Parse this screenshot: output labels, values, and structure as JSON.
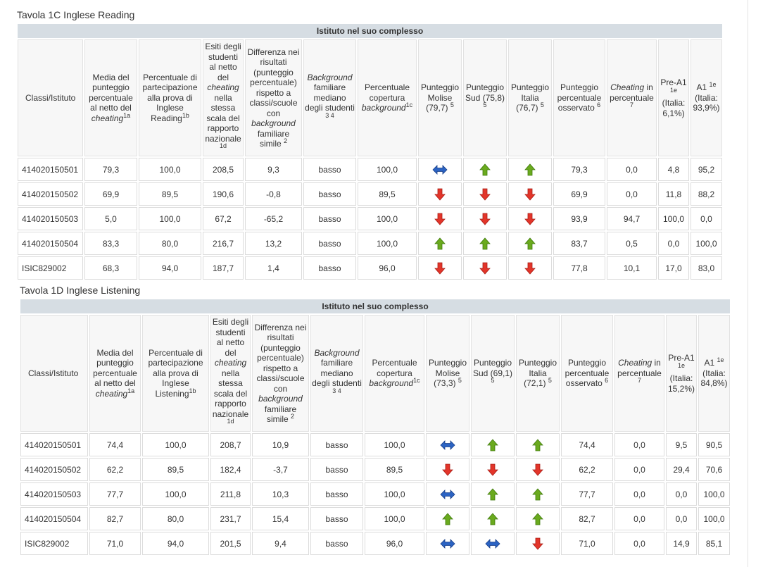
{
  "colors": {
    "header_band": "#d6dde3",
    "arrow_up": "#6aaa1e",
    "arrow_down": "#e3352a",
    "arrow_eq": "#2b63c3"
  },
  "tables": [
    {
      "title": "Tavola 1C Inglese Reading",
      "band": "Istituto nel suo complesso",
      "headers": {
        "classi": "Classi/Istituto",
        "media_a": "Media del punteggio percentuale al netto del",
        "media_b": "cheating",
        "media_sup": "1a",
        "partec": "Percentuale di partecipazione alla prova di Inglese Reading",
        "partec_sup": "1b",
        "esiti_a": "Esiti degli studenti al netto del",
        "esiti_b": "cheating",
        "esiti_c": "nella stessa scala del rapporto nazionale",
        "esiti_sup": "1d",
        "diff_a": "Differenza nei risultati (punteggio percentuale) rispetto a classi/scuole con",
        "diff_b": "background",
        "diff_c": "familiare simile",
        "diff_sup": "2",
        "bg_a": "Background",
        "bg_b": "familiare mediano degli studenti",
        "bg_sup": "3 4",
        "cop_a": "Percentuale copertura",
        "cop_b": "background",
        "cop_sup": "1c",
        "molise": "Punteggio Molise (79,7)",
        "sud": "Punteggio Sud (75,8)",
        "italia": "Punteggio Italia (76,7)",
        "p5": "5",
        "oss": "Punteggio percentuale osservato",
        "oss_sup": "6",
        "cheat_a": "Cheating",
        "cheat_b": "in percentuale",
        "cheat_sup": "7",
        "prea1": "Pre-A1",
        "prea1_sup": "1e",
        "prea1_it": "(Italia: 6,1%)",
        "a1": "A1",
        "a1_sup": "1e",
        "a1_it": "(Italia: 93,9%)"
      },
      "rows": [
        {
          "classe": "414020150501",
          "media": "79,3",
          "partec": "100,0",
          "esiti": "208,5",
          "diff": "9,3",
          "bg": "basso",
          "cop": "100,0",
          "molise": "eq",
          "sud": "up",
          "italia": "up",
          "oss": "79,3",
          "cheat": "0,0",
          "prea1": "4,8",
          "a1": "95,2"
        },
        {
          "classe": "414020150502",
          "media": "69,9",
          "partec": "89,5",
          "esiti": "190,6",
          "diff": "-0,8",
          "bg": "basso",
          "cop": "89,5",
          "molise": "down",
          "sud": "down",
          "italia": "down",
          "oss": "69,9",
          "cheat": "0,0",
          "prea1": "11,8",
          "a1": "88,2"
        },
        {
          "classe": "414020150503",
          "media": "5,0",
          "partec": "100,0",
          "esiti": "67,2",
          "diff": "-65,2",
          "bg": "basso",
          "cop": "100,0",
          "molise": "down",
          "sud": "down",
          "italia": "down",
          "oss": "93,9",
          "cheat": "94,7",
          "prea1": "100,0",
          "a1": "0,0"
        },
        {
          "classe": "414020150504",
          "media": "83,3",
          "partec": "80,0",
          "esiti": "216,7",
          "diff": "13,2",
          "bg": "basso",
          "cop": "100,0",
          "molise": "up",
          "sud": "up",
          "italia": "up",
          "oss": "83,7",
          "cheat": "0,5",
          "prea1": "0,0",
          "a1": "100,0"
        },
        {
          "classe": "ISIC829002",
          "media": "68,3",
          "partec": "94,0",
          "esiti": "187,7",
          "diff": "1,4",
          "bg": "basso",
          "cop": "96,0",
          "molise": "down",
          "sud": "down",
          "italia": "down",
          "oss": "77,8",
          "cheat": "10,1",
          "prea1": "17,0",
          "a1": "83,0"
        }
      ]
    },
    {
      "title": "Tavola 1D Inglese Listening",
      "band": "Istituto nel suo complesso",
      "headers": {
        "classi": "Classi/Istituto",
        "media_a": "Media del punteggio percentuale al netto del",
        "media_b": "cheating",
        "media_sup": "1a",
        "partec": "Percentuale di partecipazione alla prova di Inglese Listening",
        "partec_sup": "1b",
        "esiti_a": "Esiti degli studenti al netto del",
        "esiti_b": "cheating",
        "esiti_c": "nella stessa scala del rapporto nazionale",
        "esiti_sup": "1d",
        "diff_a": "Differenza nei risultati (punteggio percentuale) rispetto a classi/scuole con",
        "diff_b": "background",
        "diff_c": "familiare simile",
        "diff_sup": "2",
        "bg_a": "Background",
        "bg_b": "familiare mediano degli studenti",
        "bg_sup": "3 4",
        "cop_a": "Percentuale copertura",
        "cop_b": "background",
        "cop_sup": "1c",
        "molise": "Punteggio Molise (73,3)",
        "sud": "Punteggio Sud (69,1)",
        "italia": "Punteggio Italia (72,1)",
        "p5": "5",
        "oss": "Punteggio percentuale osservato",
        "oss_sup": "6",
        "cheat_a": "Cheating",
        "cheat_b": "in percentuale",
        "cheat_sup": "7",
        "prea1": "Pre-A1",
        "prea1_sup": "1e",
        "prea1_it": "(Italia: 15,2%)",
        "a1": "A1",
        "a1_sup": "1e",
        "a1_it": "(Italia: 84,8%)"
      },
      "rows": [
        {
          "classe": "414020150501",
          "media": "74,4",
          "partec": "100,0",
          "esiti": "208,7",
          "diff": "10,9",
          "bg": "basso",
          "cop": "100,0",
          "molise": "eq",
          "sud": "up",
          "italia": "up",
          "oss": "74,4",
          "cheat": "0,0",
          "prea1": "9,5",
          "a1": "90,5"
        },
        {
          "classe": "414020150502",
          "media": "62,2",
          "partec": "89,5",
          "esiti": "182,4",
          "diff": "-3,7",
          "bg": "basso",
          "cop": "89,5",
          "molise": "down",
          "sud": "down",
          "italia": "down",
          "oss": "62,2",
          "cheat": "0,0",
          "prea1": "29,4",
          "a1": "70,6"
        },
        {
          "classe": "414020150503",
          "media": "77,7",
          "partec": "100,0",
          "esiti": "211,8",
          "diff": "10,3",
          "bg": "basso",
          "cop": "100,0",
          "molise": "eq",
          "sud": "up",
          "italia": "up",
          "oss": "77,7",
          "cheat": "0,0",
          "prea1": "0,0",
          "a1": "100,0"
        },
        {
          "classe": "414020150504",
          "media": "82,7",
          "partec": "80,0",
          "esiti": "231,7",
          "diff": "15,4",
          "bg": "basso",
          "cop": "100,0",
          "molise": "up",
          "sud": "up",
          "italia": "up",
          "oss": "82,7",
          "cheat": "0,0",
          "prea1": "0,0",
          "a1": "100,0"
        },
        {
          "classe": "ISIC829002",
          "media": "71,0",
          "partec": "94,0",
          "esiti": "201,5",
          "diff": "9,4",
          "bg": "basso",
          "cop": "96,0",
          "molise": "eq",
          "sud": "eq",
          "italia": "down",
          "oss": "71,0",
          "cheat": "0,0",
          "prea1": "14,9",
          "a1": "85,1"
        }
      ]
    }
  ]
}
